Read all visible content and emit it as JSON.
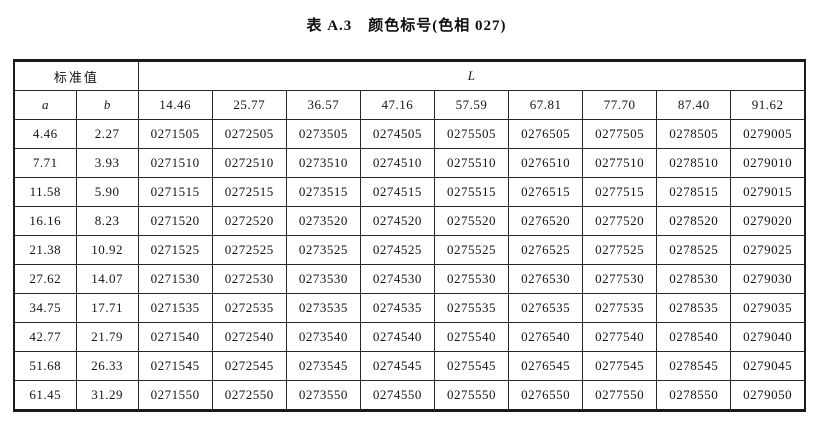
{
  "title": "表 A.3　颜色标号(色相 027)",
  "table": {
    "group_header": {
      "left": "标准值",
      "right": "L"
    },
    "sub_header": {
      "a": "a",
      "b": "b",
      "l_values": [
        "14.46",
        "25.77",
        "36.57",
        "47.16",
        "57.59",
        "67.81",
        "77.70",
        "87.40",
        "91.62"
      ]
    },
    "rows": [
      {
        "a": "4.46",
        "b": "2.27",
        "codes": [
          "0271505",
          "0272505",
          "0273505",
          "0274505",
          "0275505",
          "0276505",
          "0277505",
          "0278505",
          "0279005"
        ]
      },
      {
        "a": "7.71",
        "b": "3.93",
        "codes": [
          "0271510",
          "0272510",
          "0273510",
          "0274510",
          "0275510",
          "0276510",
          "0277510",
          "0278510",
          "0279010"
        ]
      },
      {
        "a": "11.58",
        "b": "5.90",
        "codes": [
          "0271515",
          "0272515",
          "0273515",
          "0274515",
          "0275515",
          "0276515",
          "0277515",
          "0278515",
          "0279015"
        ]
      },
      {
        "a": "16.16",
        "b": "8.23",
        "codes": [
          "0271520",
          "0272520",
          "0273520",
          "0274520",
          "0275520",
          "0276520",
          "0277520",
          "0278520",
          "0279020"
        ]
      },
      {
        "a": "21.38",
        "b": "10.92",
        "codes": [
          "0271525",
          "0272525",
          "0273525",
          "0274525",
          "0275525",
          "0276525",
          "0277525",
          "0278525",
          "0279025"
        ]
      },
      {
        "a": "27.62",
        "b": "14.07",
        "codes": [
          "0271530",
          "0272530",
          "0273530",
          "0274530",
          "0275530",
          "0276530",
          "0277530",
          "0278530",
          "0279030"
        ]
      },
      {
        "a": "34.75",
        "b": "17.71",
        "codes": [
          "0271535",
          "0272535",
          "0273535",
          "0274535",
          "0275535",
          "0276535",
          "0277535",
          "0278535",
          "0279035"
        ]
      },
      {
        "a": "42.77",
        "b": "21.79",
        "codes": [
          "0271540",
          "0272540",
          "0273540",
          "0274540",
          "0275540",
          "0276540",
          "0277540",
          "0278540",
          "0279040"
        ]
      },
      {
        "a": "51.68",
        "b": "26.33",
        "codes": [
          "0271545",
          "0272545",
          "0273545",
          "0274545",
          "0275545",
          "0276545",
          "0277545",
          "0278545",
          "0279045"
        ]
      },
      {
        "a": "61.45",
        "b": "31.29",
        "codes": [
          "0271550",
          "0272550",
          "0273550",
          "0274550",
          "0275550",
          "0276550",
          "0277550",
          "0278550",
          "0279050"
        ]
      }
    ]
  }
}
